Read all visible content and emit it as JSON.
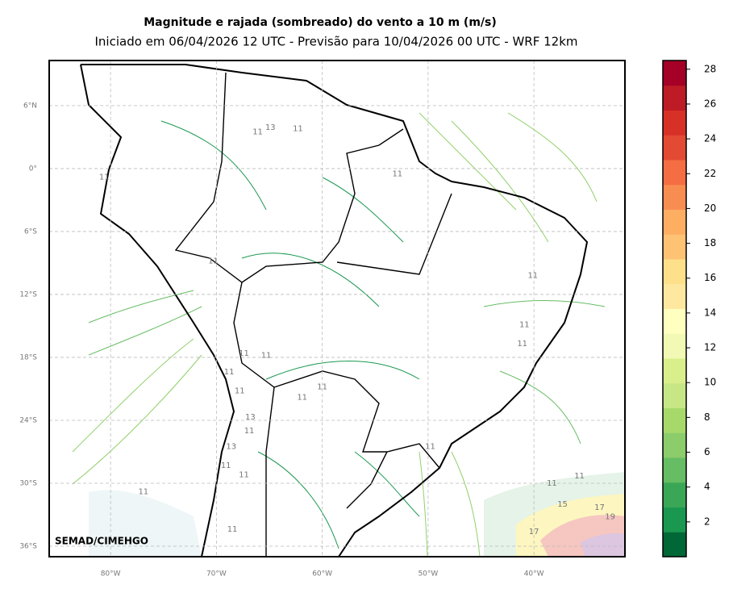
{
  "header": {
    "title": "Magnitude e rajada (sombreado) do vento a 10 m (m/s)",
    "subtitle": "Iniciado em 06/04/2026 12 UTC - Previsão para 10/04/2026 00 UTC - WRF 12km"
  },
  "map": {
    "lon_range": [
      -85.8,
      -31.4
    ],
    "lat_range": [
      -37,
      10.3
    ],
    "lat_ticks": [
      {
        "value": 6,
        "label": "6°N"
      },
      {
        "value": 0,
        "label": "0°"
      },
      {
        "value": -6,
        "label": "6°S"
      },
      {
        "value": -12,
        "label": "12°S"
      },
      {
        "value": -18,
        "label": "18°S"
      },
      {
        "value": -24,
        "label": "24°S"
      },
      {
        "value": -30,
        "label": "30°S"
      },
      {
        "value": -36,
        "label": "36°S"
      }
    ],
    "lon_ticks": [
      {
        "value": -80,
        "label": "80°W"
      },
      {
        "value": -70,
        "label": "70°W"
      },
      {
        "value": -60,
        "label": "60°W"
      },
      {
        "value": -50,
        "label": "50°W"
      },
      {
        "value": -40,
        "label": "40°W"
      }
    ],
    "credit": "SEMAD/CIMEHGO",
    "contour_labels": [
      {
        "text": "11",
        "lon": -80.6,
        "lat": -0.8
      },
      {
        "text": "13",
        "lon": -64.9,
        "lat": 3.9
      },
      {
        "text": "11",
        "lon": -66.1,
        "lat": 3.5
      },
      {
        "text": "11",
        "lon": -62.3,
        "lat": 3.8
      },
      {
        "text": "11",
        "lon": -52.9,
        "lat": -0.5
      },
      {
        "text": "11",
        "lon": -70.3,
        "lat": -8.8
      },
      {
        "text": "11",
        "lon": -40.1,
        "lat": -10.2
      },
      {
        "text": "11",
        "lon": -40.9,
        "lat": -14.9
      },
      {
        "text": "11",
        "lon": -41.1,
        "lat": -16.7
      },
      {
        "text": "11",
        "lon": -67.4,
        "lat": -17.6
      },
      {
        "text": "11",
        "lon": -65.3,
        "lat": -17.8
      },
      {
        "text": "11",
        "lon": -68.8,
        "lat": -19.4
      },
      {
        "text": "11",
        "lon": -67.8,
        "lat": -21.2
      },
      {
        "text": "11",
        "lon": -61.9,
        "lat": -21.8
      },
      {
        "text": "11",
        "lon": -60.0,
        "lat": -20.8
      },
      {
        "text": "13",
        "lon": -66.8,
        "lat": -23.7
      },
      {
        "text": "11",
        "lon": -66.9,
        "lat": -25.0
      },
      {
        "text": "13",
        "lon": -68.6,
        "lat": -26.5
      },
      {
        "text": "11",
        "lon": -49.8,
        "lat": -26.5
      },
      {
        "text": "11",
        "lon": -69.1,
        "lat": -28.3
      },
      {
        "text": "11",
        "lon": -67.4,
        "lat": -29.2
      },
      {
        "text": "11",
        "lon": -76.9,
        "lat": -30.8
      },
      {
        "text": "11",
        "lon": -38.3,
        "lat": -30.0
      },
      {
        "text": "11",
        "lon": -35.7,
        "lat": -29.3
      },
      {
        "text": "15",
        "lon": -37.3,
        "lat": -32.0
      },
      {
        "text": "17",
        "lon": -33.8,
        "lat": -32.3
      },
      {
        "text": "19",
        "lon": -32.8,
        "lat": -33.2
      },
      {
        "text": "17",
        "lon": -40.0,
        "lat": -34.6
      },
      {
        "text": "11",
        "lon": -68.5,
        "lat": -34.4
      }
    ]
  },
  "colorbar": {
    "range": [
      0,
      28.5
    ],
    "ticks": [
      2,
      4,
      6,
      8,
      10,
      12,
      14,
      16,
      18,
      20,
      22,
      24,
      26,
      28
    ],
    "colors": [
      "#006837",
      "#1a9850",
      "#3aa757",
      "#66bd63",
      "#8ccc6b",
      "#a6d96a",
      "#c7e686",
      "#d9ef8b",
      "#f2f9b4",
      "#ffffbf",
      "#fee8a0",
      "#fee08b",
      "#fdc274",
      "#fdae61",
      "#f88d52",
      "#f46d43",
      "#e34a33",
      "#d73027",
      "#bd1c26",
      "#a50026"
    ]
  }
}
